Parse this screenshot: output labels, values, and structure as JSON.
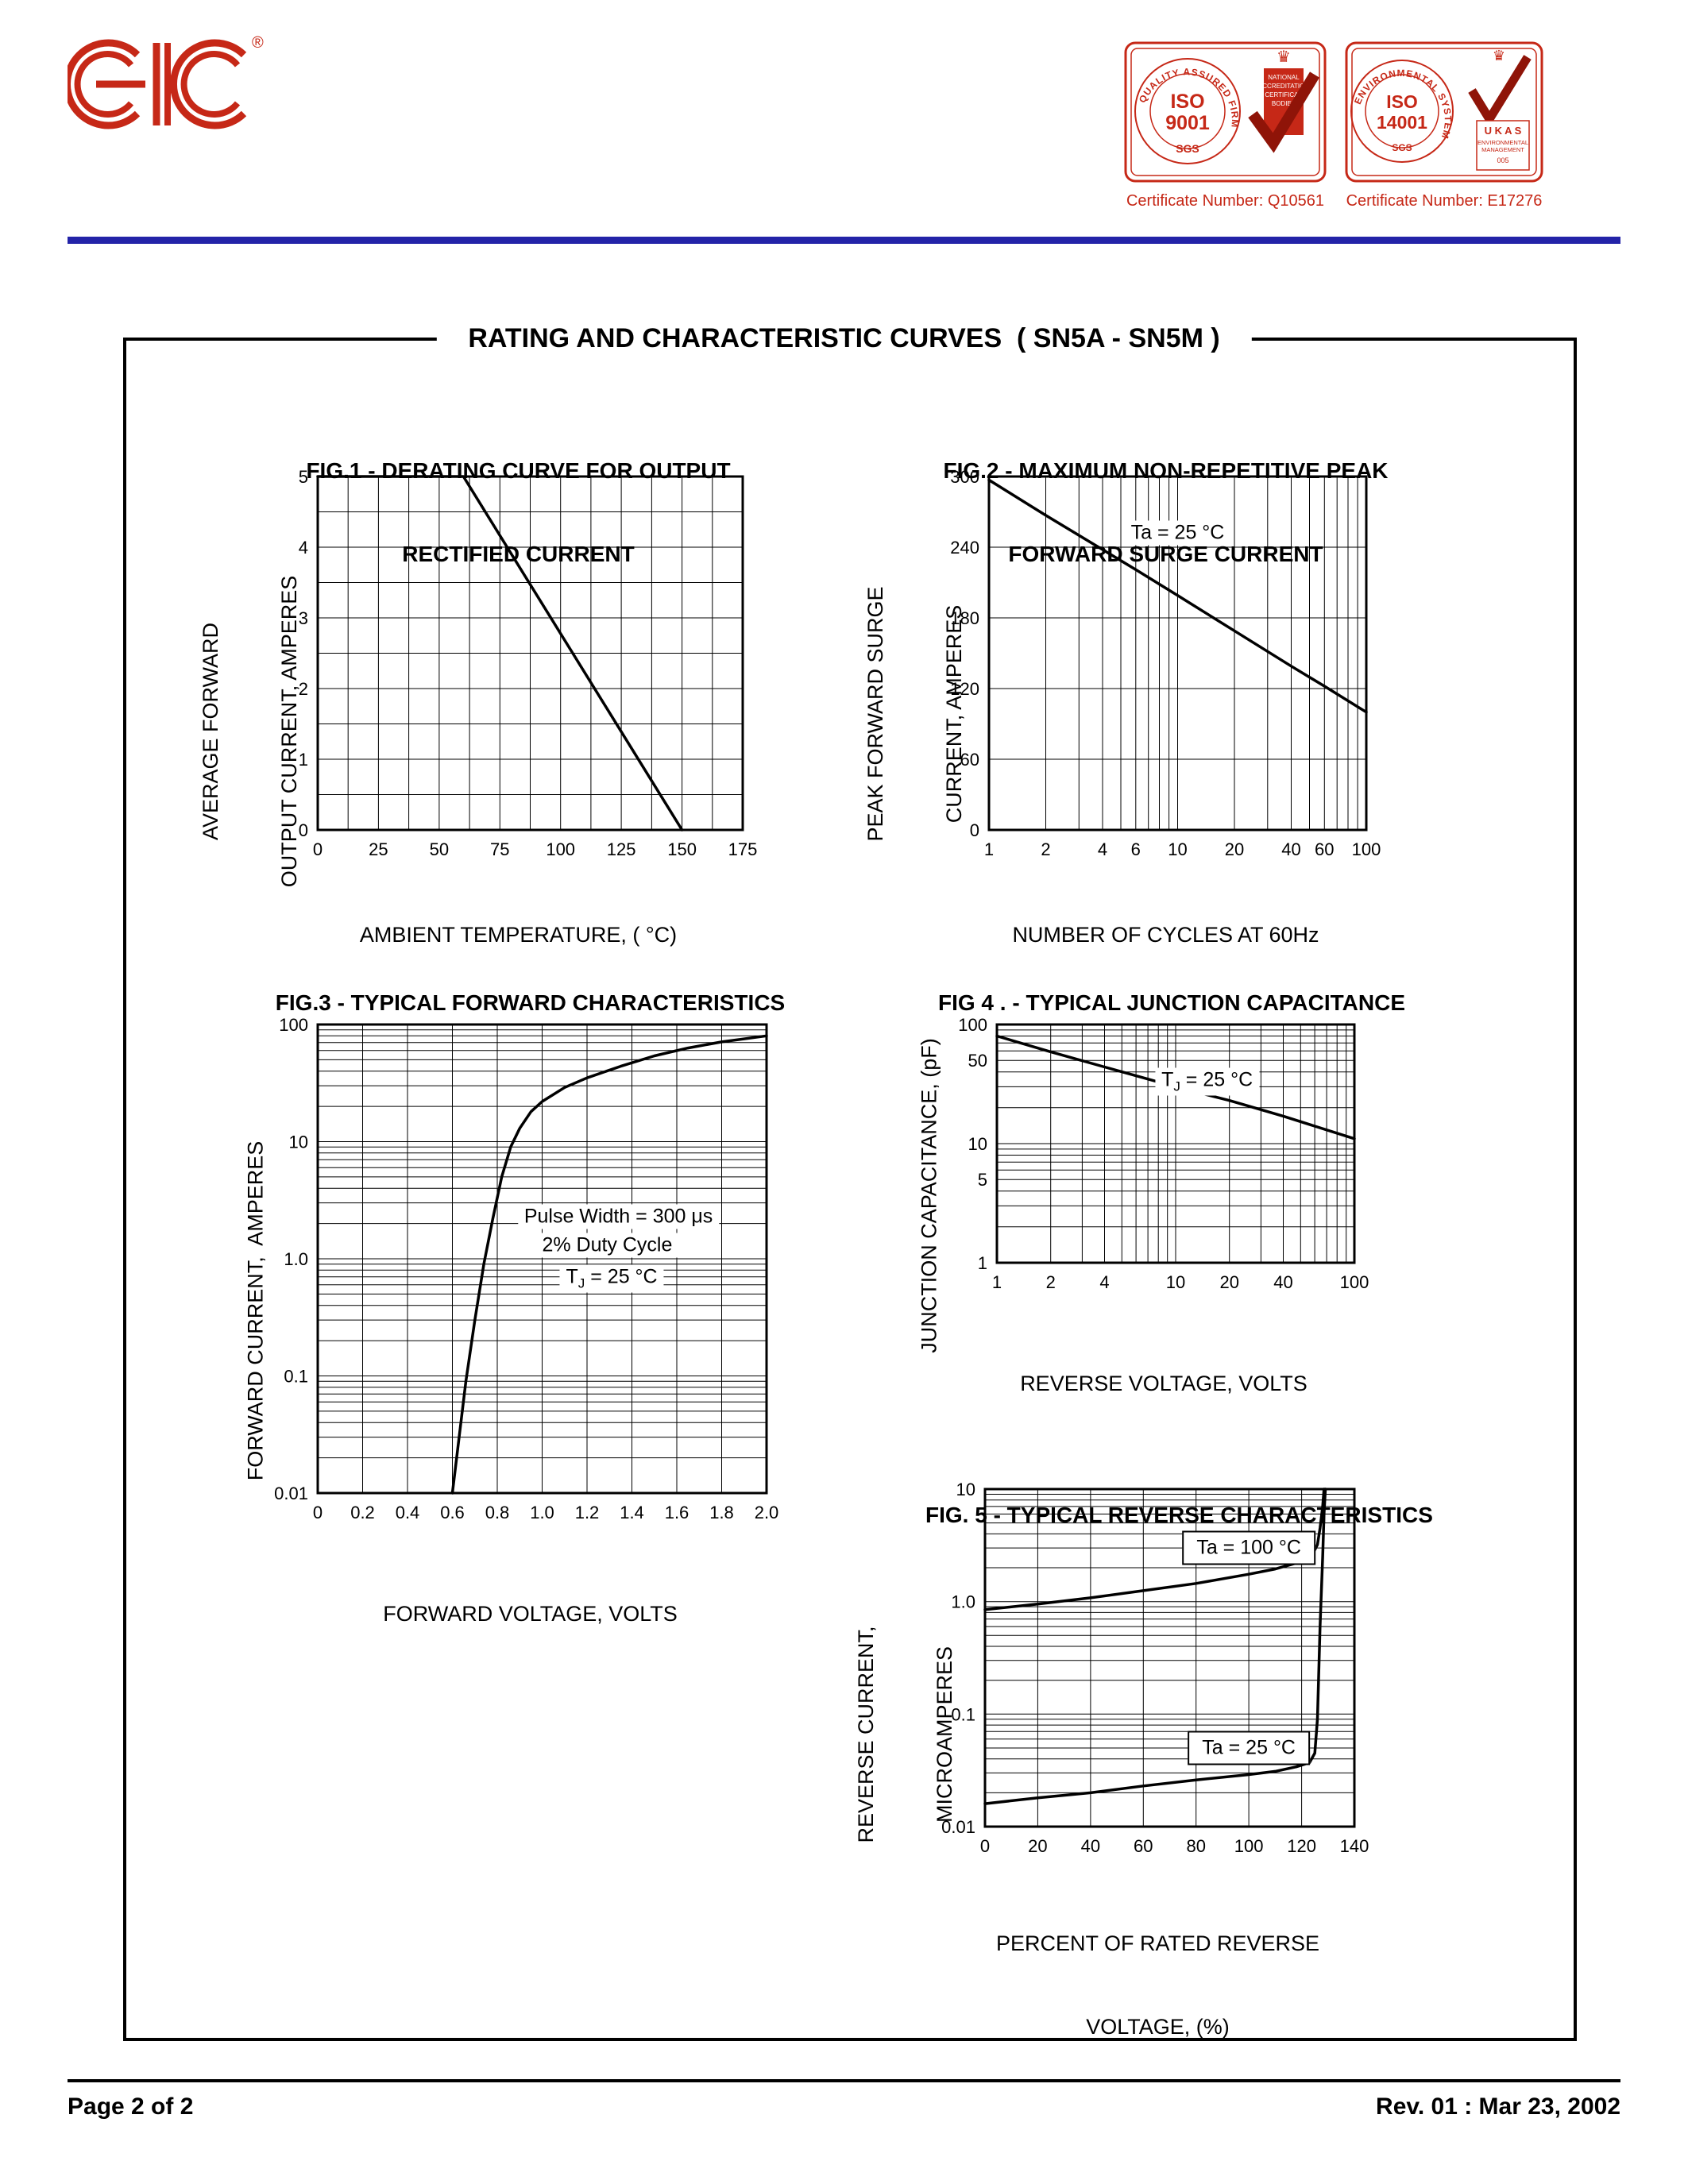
{
  "document": {
    "main_title": "RATING AND CHARACTERISTIC CURVES  ( SN5A - SN5M )",
    "footer_left": "Page 2 of 2",
    "footer_right": "Rev. 01 : Mar 23, 2002"
  },
  "header": {
    "logo": {
      "text": "EIC",
      "reg": "®"
    },
    "badge1": {
      "ring_text": "QUALITY ASSURED FIRM",
      "iso_line1": "ISO",
      "iso_line2": "9001",
      "sgs": "SGS",
      "accred_lines": [
        "NATIONAL",
        "ACCREDITATION",
        "OF CERTIFICATION",
        "BODIES"
      ],
      "caption": "Certificate Number: Q10561"
    },
    "badge2": {
      "ring_text": "ENVIRONMENTAL SYSTEM",
      "iso_line1": "ISO",
      "iso_line2": "14001",
      "sgs": "SGS",
      "ukas": "U K A S",
      "ukas_sub1": "ENVIRONMENTAL",
      "ukas_sub2": "MANAGEMENT",
      "ukas_num": "005",
      "caption": "Certificate Number: E17276"
    }
  },
  "colors": {
    "accent_red": "#c62817",
    "check_dark_red": "#8f1408",
    "rule_blue": "#2323a8",
    "ink": "#000000"
  },
  "chart_data": [
    {
      "id": "fig1",
      "type": "line",
      "title_lines": [
        "FIG.1 - DERATING CURVE FOR OUTPUT",
        "RECTIFIED CURRENT"
      ],
      "xlabel_lines": [
        "AMBIENT TEMPERATURE, ( °C)"
      ],
      "ylabel_lines": [
        "AVERAGE FORWARD",
        "OUTPUT CURRENT, AMPERES"
      ],
      "xscale": "linear",
      "yscale": "linear",
      "xlim": [
        0,
        175
      ],
      "ylim": [
        0,
        5
      ],
      "xtick_values": [
        0,
        25,
        50,
        75,
        100,
        125,
        150,
        175
      ],
      "xtick_labels": [
        "0",
        "25",
        "50",
        "75",
        "100",
        "125",
        "150",
        "175"
      ],
      "ytick_values": [
        0,
        1,
        2,
        3,
        4,
        5
      ],
      "ytick_labels": [
        "0",
        "1",
        "2",
        "3",
        "4",
        "5"
      ],
      "xgrid_step": 12.5,
      "ygrid_step": 0.5,
      "grid": true,
      "legend": "none",
      "annotations": [],
      "series": [
        {
          "name": "output-current-derating",
          "points": [
            [
              0,
              5
            ],
            [
              60,
              5
            ],
            [
              150,
              0
            ]
          ]
        }
      ]
    },
    {
      "id": "fig2",
      "type": "line",
      "title_lines": [
        "FIG.2 - MAXIMUM NON-REPETITIVE PEAK",
        "FORWARD SURGE CURRENT"
      ],
      "xlabel_lines": [
        "NUMBER OF CYCLES AT 60Hz"
      ],
      "ylabel_lines": [
        "PEAK FORWARD SURGE",
        "CURRENT, AMPERES"
      ],
      "xscale": "log",
      "yscale": "linear",
      "xlim": [
        1,
        100
      ],
      "ylim": [
        0,
        300
      ],
      "xtick_values": [
        1,
        2,
        4,
        6,
        10,
        20,
        40,
        60,
        100
      ],
      "xtick_labels": [
        "1",
        "2",
        "4",
        "6",
        "10",
        "20",
        "40",
        "60",
        "100"
      ],
      "ytick_values": [
        0,
        60,
        120,
        180,
        240,
        300
      ],
      "ytick_labels": [
        "0",
        "60",
        "120",
        "180",
        "240",
        "300"
      ],
      "ygrid_step": 60,
      "grid": true,
      "legend": "none",
      "annotations": [
        {
          "parts": [
            {
              "t": "Ta = 25 °C"
            }
          ],
          "x": 10,
          "y": 252,
          "box": false
        }
      ],
      "series": [
        {
          "name": "peak-surge-current",
          "points": [
            [
              1,
              297
            ],
            [
              2,
              267
            ],
            [
              4,
              238
            ],
            [
              6,
              221
            ],
            [
              10,
              199
            ],
            [
              20,
              169
            ],
            [
              40,
              139
            ],
            [
              60,
              122
            ],
            [
              100,
              100
            ]
          ]
        }
      ]
    },
    {
      "id": "fig3",
      "type": "line",
      "title_lines": [
        "FIG.3 - TYPICAL FORWARD CHARACTERISTICS"
      ],
      "xlabel_lines": [
        "FORWARD VOLTAGE, VOLTS"
      ],
      "ylabel_lines": [
        "FORWARD CURRENT,  AMPERES"
      ],
      "xscale": "linear",
      "yscale": "log",
      "xlim": [
        0,
        2
      ],
      "ylim": [
        0.01,
        100
      ],
      "xtick_values": [
        0,
        0.2,
        0.4,
        0.6,
        0.8,
        1.0,
        1.2,
        1.4,
        1.6,
        1.8,
        2.0
      ],
      "xtick_labels": [
        "0",
        "0.2",
        "0.4",
        "0.6",
        "0.8",
        "1.0",
        "1.2",
        "1.4",
        "1.6",
        "1.8",
        "2.0"
      ],
      "ytick_values": [
        0.01,
        0.1,
        1.0,
        10,
        100
      ],
      "ytick_labels": [
        "0.01",
        "0.1",
        "1.0",
        "10",
        "100"
      ],
      "xgrid_step": 0.2,
      "grid": true,
      "legend": "none",
      "annotations": [
        {
          "parts": [
            {
              "t": "Pulse Width = 300 μs"
            }
          ],
          "x": 1.34,
          "y": 2.3,
          "box": false
        },
        {
          "parts": [
            {
              "t": "2% Duty Cycle"
            }
          ],
          "x": 1.29,
          "y": 1.3,
          "box": false
        },
        {
          "parts": [
            {
              "t": "T"
            },
            {
              "t": "J",
              "sub": true
            },
            {
              "t": " = 25 °C"
            }
          ],
          "x": 1.31,
          "y": 0.68,
          "box": false
        }
      ],
      "series": [
        {
          "name": "forward-characteristic",
          "points": [
            [
              0.6,
              0.01
            ],
            [
              0.63,
              0.03
            ],
            [
              0.66,
              0.09
            ],
            [
              0.7,
              0.3
            ],
            [
              0.74,
              0.9
            ],
            [
              0.78,
              2.2
            ],
            [
              0.82,
              5
            ],
            [
              0.86,
              9
            ],
            [
              0.9,
              13
            ],
            [
              0.95,
              18
            ],
            [
              1.0,
              22
            ],
            [
              1.1,
              29
            ],
            [
              1.2,
              35
            ],
            [
              1.35,
              44
            ],
            [
              1.5,
              54
            ],
            [
              1.65,
              63
            ],
            [
              1.8,
              71
            ],
            [
              2.0,
              80
            ]
          ]
        }
      ]
    },
    {
      "id": "fig4",
      "type": "line",
      "title_lines": [
        "FIG 4 . - TYPICAL JUNCTION CAPACITANCE"
      ],
      "xlabel_lines": [
        "REVERSE VOLTAGE, VOLTS"
      ],
      "ylabel_lines": [
        "JUNCTION CAPACITANCE, (pF)"
      ],
      "xscale": "log",
      "yscale": "log",
      "xlim": [
        1,
        100
      ],
      "ylim": [
        1,
        100
      ],
      "xtick_values": [
        1,
        2,
        4,
        10,
        20,
        40,
        100
      ],
      "xtick_labels": [
        "1",
        "2",
        "4",
        "10",
        "20",
        "40",
        "100"
      ],
      "ytick_values": [
        1,
        5,
        10,
        50,
        100
      ],
      "ytick_labels": [
        "1",
        "5",
        "10",
        "50",
        "100"
      ],
      "grid": true,
      "legend": "none",
      "annotations": [
        {
          "parts": [
            {
              "t": "T"
            },
            {
              "t": "J",
              "sub": true
            },
            {
              "t": " = 25 °C"
            }
          ],
          "x": 15,
          "y": 33,
          "box": false
        }
      ],
      "series": [
        {
          "name": "junction-capacitance",
          "points": [
            [
              1,
              80
            ],
            [
              2,
              59
            ],
            [
              4,
              44
            ],
            [
              10,
              30
            ],
            [
              20,
              23
            ],
            [
              40,
              17
            ],
            [
              100,
              11
            ]
          ]
        }
      ]
    },
    {
      "id": "fig5",
      "type": "line",
      "title_lines": [
        "FIG. 5 - TYPICAL REVERSE CHARACTERISTICS"
      ],
      "xlabel_lines": [
        "PERCENT OF RATED REVERSE",
        "VOLTAGE, (%)"
      ],
      "ylabel_lines": [
        "REVERSE CURRENT,",
        "MICROAMPERES"
      ],
      "xscale": "linear",
      "yscale": "log",
      "xlim": [
        0,
        140
      ],
      "ylim": [
        0.01,
        10
      ],
      "xtick_values": [
        0,
        20,
        40,
        60,
        80,
        100,
        120,
        140
      ],
      "xtick_labels": [
        "0",
        "20",
        "40",
        "60",
        "80",
        "100",
        "120",
        "140"
      ],
      "ytick_values": [
        0.01,
        0.1,
        1.0,
        10
      ],
      "ytick_labels": [
        "0.01",
        "0.1",
        "1.0",
        "10"
      ],
      "xgrid_step": 20,
      "grid": true,
      "legend": "none",
      "annotations": [
        {
          "parts": [
            {
              "t": "Ta = 100 °C"
            }
          ],
          "x": 100,
          "y": 3,
          "box": true
        },
        {
          "parts": [
            {
              "t": "Ta = 25 °C"
            }
          ],
          "x": 100,
          "y": 0.05,
          "box": true
        }
      ],
      "series": [
        {
          "name": "reverse-current-100C",
          "points": [
            [
              0,
              0.85
            ],
            [
              20,
              0.95
            ],
            [
              40,
              1.08
            ],
            [
              60,
              1.25
            ],
            [
              80,
              1.45
            ],
            [
              100,
              1.75
            ],
            [
              110,
              1.95
            ],
            [
              118,
              2.2
            ],
            [
              124,
              2.6
            ],
            [
              126,
              3.2
            ],
            [
              127,
              4.5
            ],
            [
              128,
              7
            ],
            [
              128.5,
              10
            ]
          ]
        },
        {
          "name": "reverse-current-25C",
          "points": [
            [
              0,
              0.016
            ],
            [
              20,
              0.018
            ],
            [
              40,
              0.02
            ],
            [
              60,
              0.023
            ],
            [
              80,
              0.026
            ],
            [
              100,
              0.029
            ],
            [
              110,
              0.031
            ],
            [
              118,
              0.034
            ],
            [
              123,
              0.037
            ],
            [
              125,
              0.045
            ],
            [
              126,
              0.09
            ],
            [
              127,
              0.6
            ],
            [
              128,
              2.5
            ],
            [
              128.5,
              6
            ],
            [
              129,
              10
            ]
          ]
        }
      ]
    }
  ]
}
